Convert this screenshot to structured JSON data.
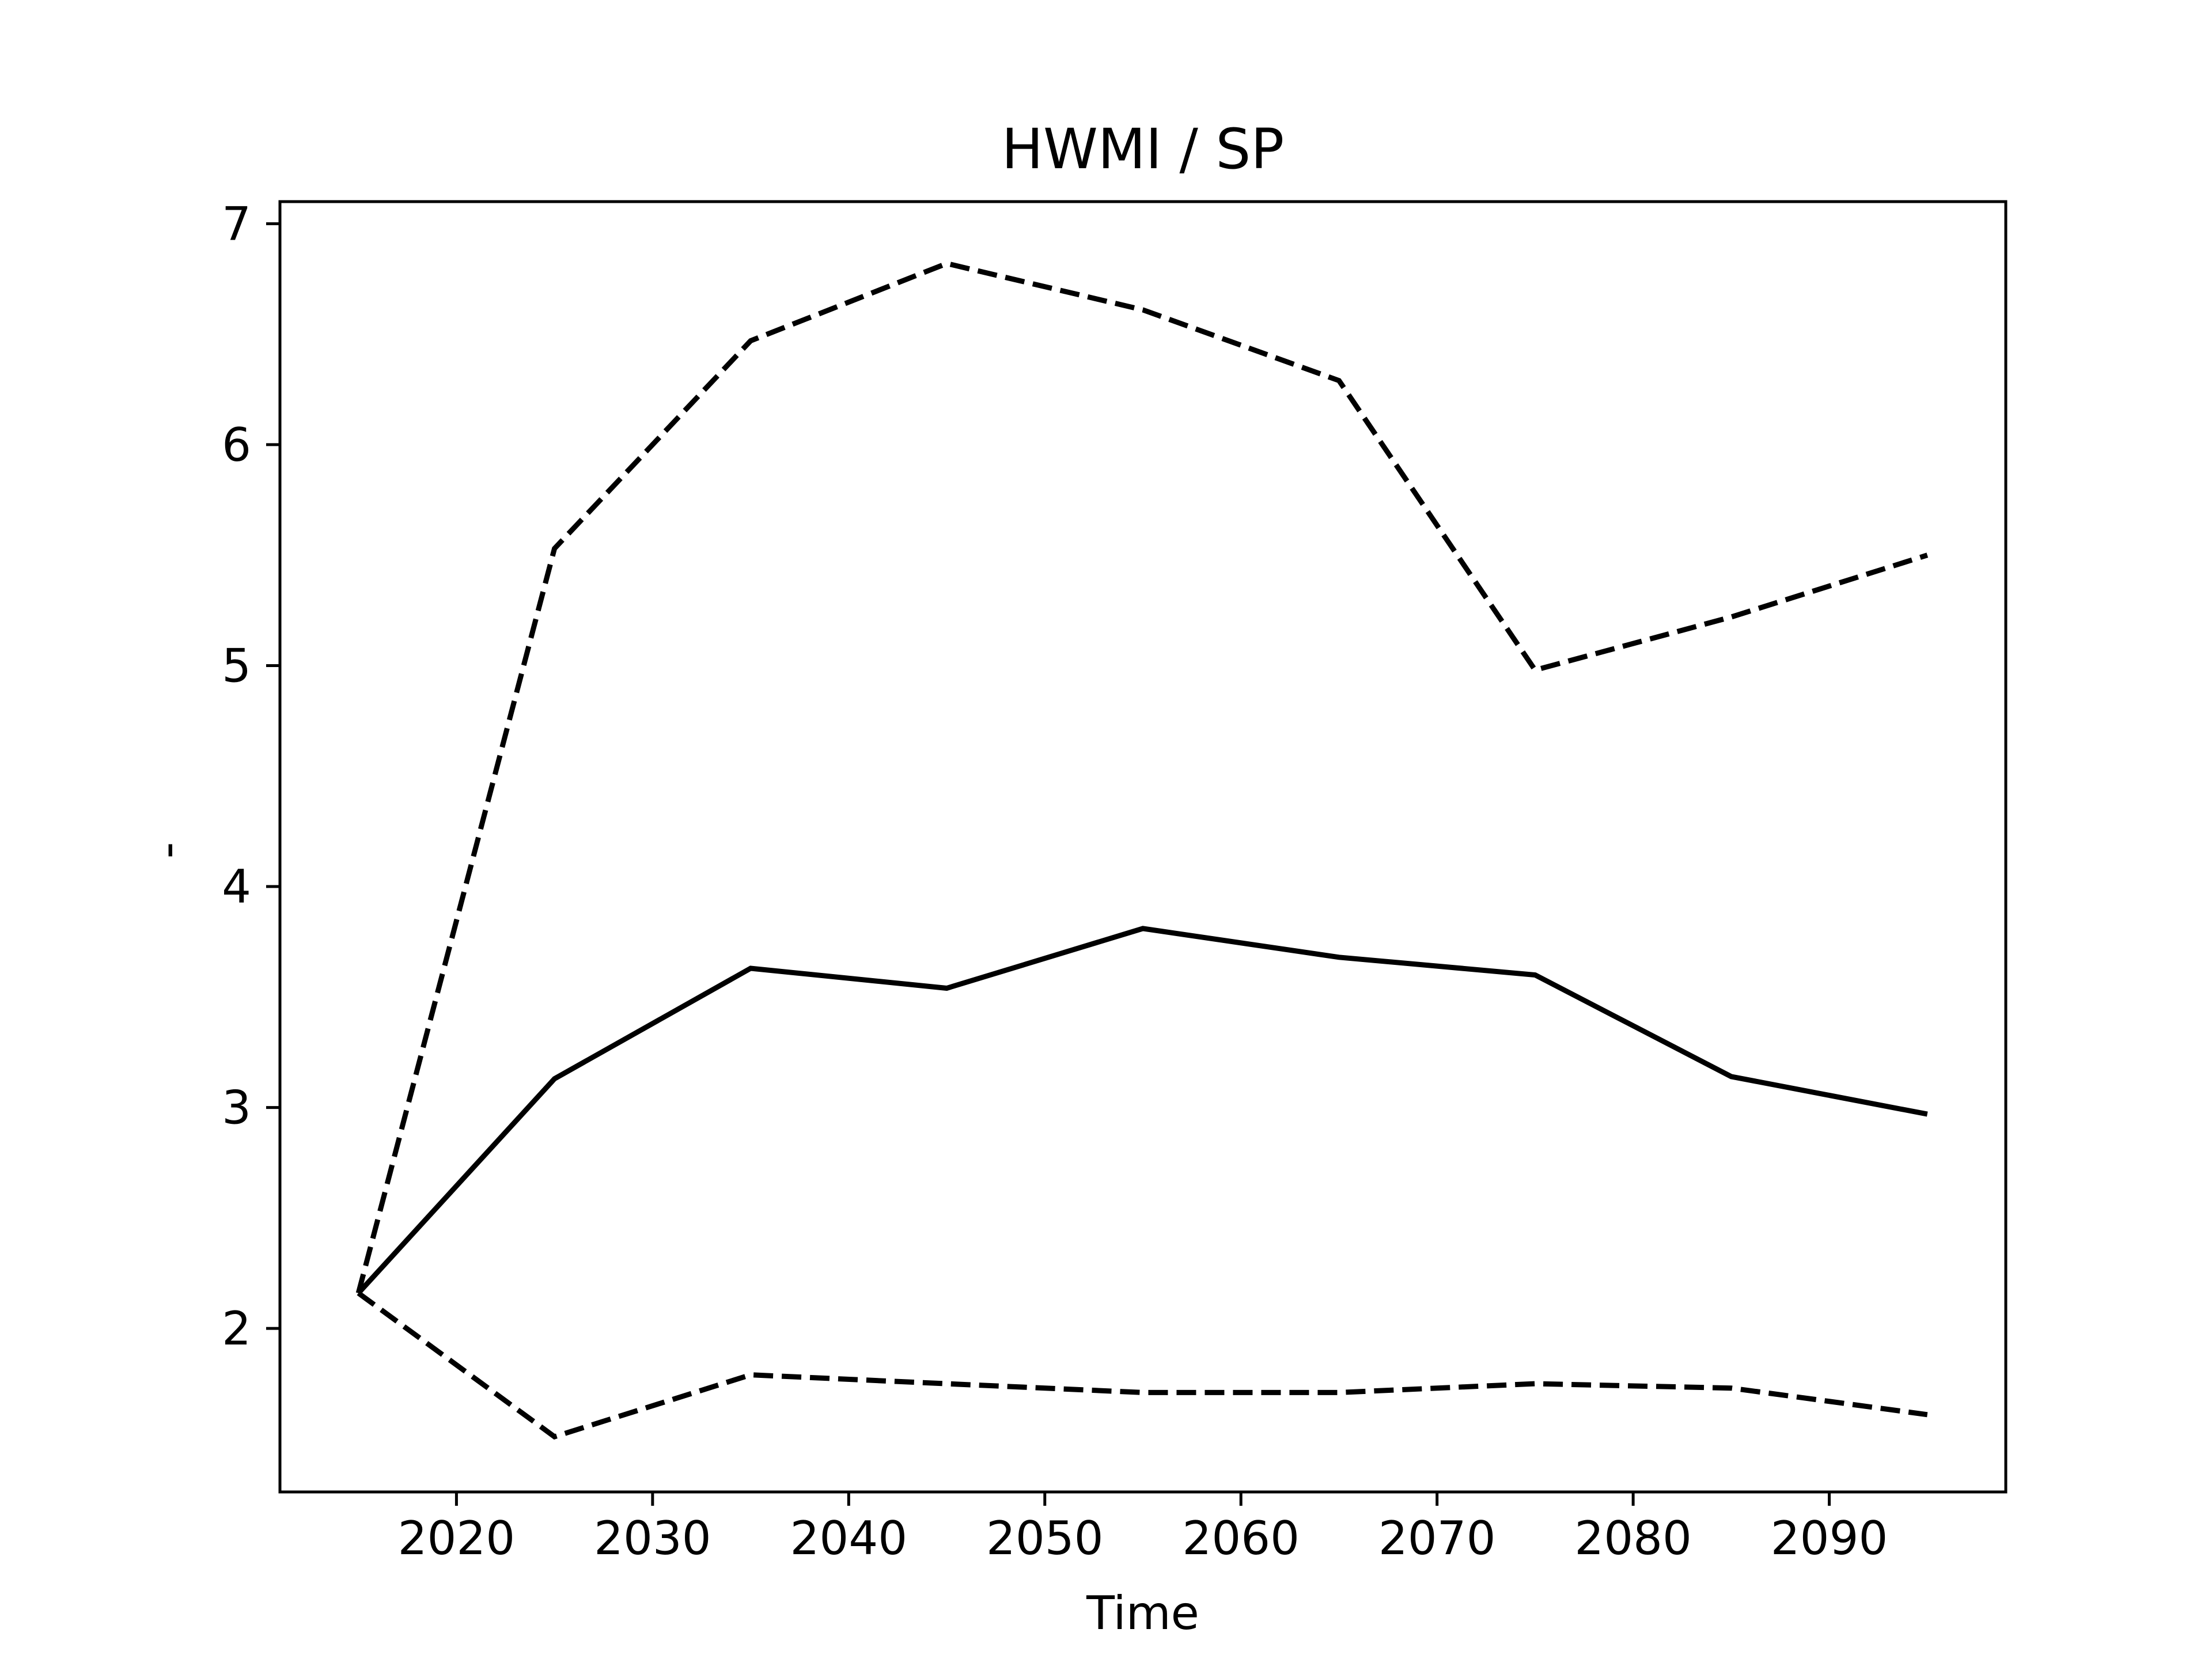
{
  "chart_data": {
    "type": "line",
    "title": "HWMI / SP",
    "xlabel": "Time",
    "ylabel": "-",
    "x": [
      2015,
      2025,
      2035,
      2045,
      2055,
      2065,
      2075,
      2085,
      2095
    ],
    "xlim": [
      2011,
      2099
    ],
    "ylim": [
      1.26,
      7.1
    ],
    "xticks": [
      2020,
      2030,
      2040,
      2050,
      2060,
      2070,
      2080,
      2090
    ],
    "yticks": [
      2,
      3,
      4,
      5,
      6,
      7
    ],
    "grid": false,
    "legend": "none",
    "series": [
      {
        "style": "solid",
        "color": "#000000",
        "values": [
          2.16,
          3.13,
          3.63,
          3.54,
          3.81,
          3.68,
          3.6,
          3.14,
          2.97
        ]
      },
      {
        "style": "dashed",
        "color": "#000000",
        "values": [
          2.16,
          5.53,
          6.47,
          6.82,
          6.61,
          6.29,
          4.98,
          5.22,
          5.5
        ]
      },
      {
        "style": "dashed",
        "color": "#000000",
        "values": [
          2.16,
          1.51,
          1.79,
          1.75,
          1.71,
          1.71,
          1.75,
          1.73,
          1.61
        ]
      }
    ]
  }
}
